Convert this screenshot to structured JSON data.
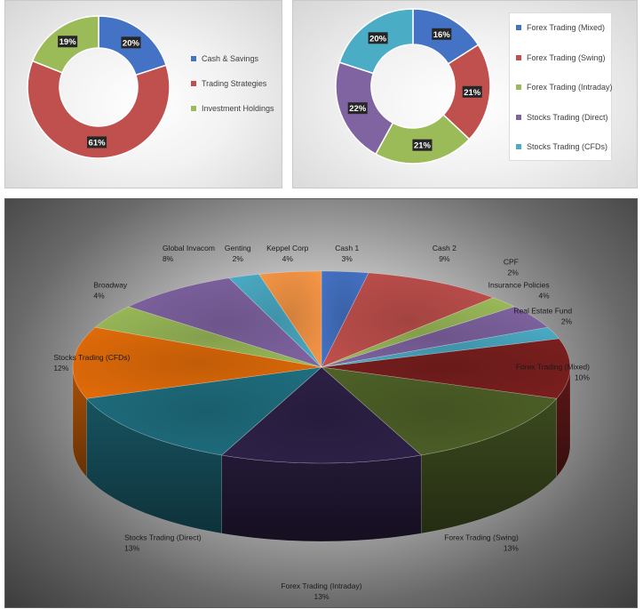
{
  "chart_data": [
    {
      "type": "pie",
      "variant": "doughnut",
      "title": "",
      "labels": [
        "Cash & Savings",
        "Trading Strategies",
        "Investment Holdings"
      ],
      "values": [
        20,
        61,
        19
      ],
      "data_labels": [
        "20%",
        "61%",
        "19%"
      ],
      "colors": [
        "#4472C4",
        "#C0504D",
        "#9BBB59"
      ],
      "legend_position": "right"
    },
    {
      "type": "pie",
      "variant": "doughnut",
      "title": "",
      "labels": [
        "Forex Trading (Mixed)",
        "Forex Trading (Swing)",
        "Forex Trading (Intraday)",
        "Stocks Trading (Direct)",
        "Stocks Trading (CFDs)"
      ],
      "values": [
        16,
        21,
        21,
        22,
        20
      ],
      "data_labels": [
        "16%",
        "21%",
        "21%",
        "22%",
        "20%"
      ],
      "colors": [
        "#4472C4",
        "#C0504D",
        "#9BBB59",
        "#8064A2",
        "#4BACC6"
      ],
      "legend_position": "right"
    },
    {
      "type": "pie",
      "variant": "3d-pie",
      "title": "",
      "labels": [
        "Cash 1",
        "Cash 2",
        "CPF",
        "Insurance Policies",
        "Real Estate Fund",
        "Forex Trading (Mixed)",
        "Forex Trading (Swing)",
        "Forex Trading (Intraday)",
        "Stocks Trading (Direct)",
        "Stocks Trading (CFDs)",
        "Broadway",
        "Global Invacom",
        "Genting",
        "Keppel Corp"
      ],
      "values": [
        3,
        9,
        2,
        4,
        2,
        10,
        13,
        13,
        13,
        12,
        4,
        8,
        2,
        4
      ],
      "data_labels": [
        "3%",
        "9%",
        "2%",
        "4%",
        "2%",
        "10%",
        "13%",
        "13%",
        "13%",
        "12%",
        "4%",
        "8%",
        "2%",
        "4%"
      ],
      "colors": [
        "#4472C4",
        "#C0504D",
        "#9BBB59",
        "#8064A2",
        "#4BACC6",
        "#7B1F1F",
        "#4F6228",
        "#2E2148",
        "#1F6F80",
        "#E36C09",
        "#9BBB59",
        "#8064A2",
        "#4BACC6",
        "#F79646"
      ]
    }
  ]
}
